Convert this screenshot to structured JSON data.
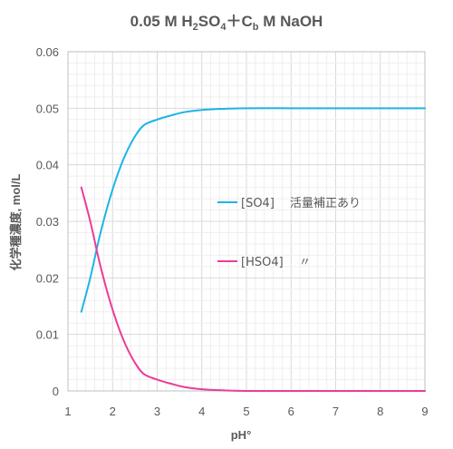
{
  "chart_data": {
    "type": "line",
    "title": {
      "main": "0.05 M H",
      "sub1": "2",
      "mid1": "SO",
      "sub2": "4",
      "mid2": "＋C",
      "sub3": "b",
      "end": " M NaOH"
    },
    "xlabel": "pH°",
    "ylabel": "化学種濃度, mol/L",
    "xlim": [
      1,
      9
    ],
    "ylim": [
      0,
      0.06
    ],
    "x_ticks": [
      "1",
      "2",
      "3",
      "4",
      "5",
      "6",
      "7",
      "8",
      "9"
    ],
    "y_ticks": [
      "0",
      "0.01",
      "0.02",
      "0.03",
      "0.04",
      "0.05",
      "0.06"
    ],
    "grid": true,
    "legend_placement": "right-middle",
    "series": [
      {
        "name": "[SO4]",
        "note": "活量補正あり",
        "color": "#1EB4E6",
        "points": [
          [
            1.3,
            0.014
          ],
          [
            1.5,
            0.02
          ],
          [
            1.7,
            0.027
          ],
          [
            1.9,
            0.033
          ],
          [
            2.1,
            0.038
          ],
          [
            2.3,
            0.042
          ],
          [
            2.5,
            0.045
          ],
          [
            2.7,
            0.047
          ],
          [
            3.0,
            0.048
          ],
          [
            3.3,
            0.0487
          ],
          [
            3.6,
            0.0493
          ],
          [
            4.0,
            0.0497
          ],
          [
            4.5,
            0.0499
          ],
          [
            5.0,
            0.05
          ],
          [
            6.0,
            0.05
          ],
          [
            7.0,
            0.05
          ],
          [
            8.0,
            0.05
          ],
          [
            9.0,
            0.05
          ]
        ]
      },
      {
        "name": "[HSO4]",
        "note": "〃",
        "color": "#EC3C96",
        "points": [
          [
            1.3,
            0.036
          ],
          [
            1.5,
            0.03
          ],
          [
            1.7,
            0.023
          ],
          [
            1.9,
            0.017
          ],
          [
            2.1,
            0.012
          ],
          [
            2.3,
            0.008
          ],
          [
            2.5,
            0.005
          ],
          [
            2.7,
            0.003
          ],
          [
            3.0,
            0.002
          ],
          [
            3.3,
            0.0013
          ],
          [
            3.6,
            0.0007
          ],
          [
            4.0,
            0.0003
          ],
          [
            4.5,
            0.0001
          ],
          [
            5.0,
            0.0
          ],
          [
            6.0,
            0.0
          ],
          [
            7.0,
            0.0
          ],
          [
            8.0,
            0.0
          ],
          [
            9.0,
            0.0
          ]
        ]
      }
    ]
  }
}
